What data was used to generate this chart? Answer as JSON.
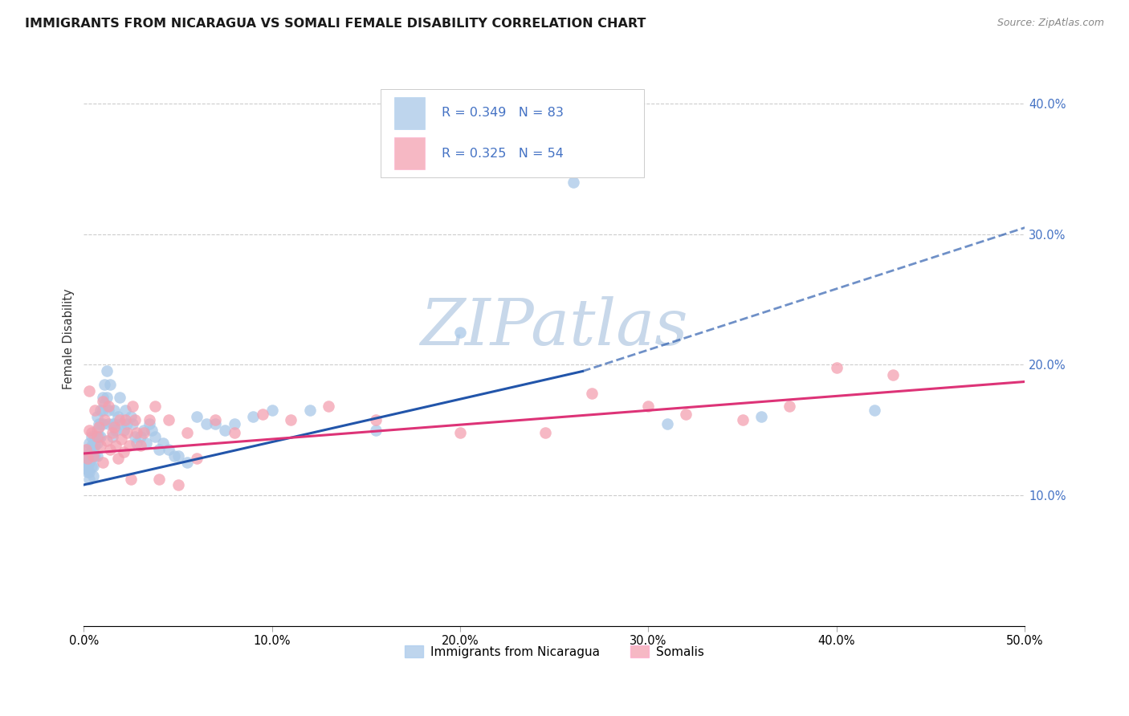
{
  "title": "IMMIGRANTS FROM NICARAGUA VS SOMALI FEMALE DISABILITY CORRELATION CHART",
  "source_text": "Source: ZipAtlas.com",
  "ylabel_label": "Female Disability",
  "xlim": [
    0.0,
    0.5
  ],
  "ylim": [
    0.0,
    0.44
  ],
  "xtick_vals": [
    0.0,
    0.1,
    0.2,
    0.3,
    0.4,
    0.5
  ],
  "xtick_labels": [
    "0.0%",
    "10.0%",
    "20.0%",
    "30.0%",
    "40.0%",
    "50.0%"
  ],
  "ytick_vals": [
    0.1,
    0.2,
    0.3,
    0.4
  ],
  "ytick_labels": [
    "10.0%",
    "20.0%",
    "30.0%",
    "40.0%"
  ],
  "legend_R1": "0.349",
  "legend_N1": "83",
  "legend_R2": "0.325",
  "legend_N2": "54",
  "blue_color": "#a8c8e8",
  "pink_color": "#f4a0b0",
  "blue_line_color": "#2255aa",
  "pink_line_color": "#dd3377",
  "blue_line_start_y": 0.108,
  "blue_line_end_y": 0.195,
  "blue_line_dashed_end_y": 0.305,
  "pink_line_start_y": 0.132,
  "pink_line_end_y": 0.187,
  "watermark": "ZIPatlas",
  "blue_scatter_x": [
    0.001,
    0.001,
    0.001,
    0.002,
    0.002,
    0.002,
    0.002,
    0.003,
    0.003,
    0.003,
    0.003,
    0.003,
    0.004,
    0.004,
    0.004,
    0.004,
    0.005,
    0.005,
    0.005,
    0.005,
    0.006,
    0.006,
    0.006,
    0.007,
    0.007,
    0.007,
    0.007,
    0.008,
    0.008,
    0.009,
    0.009,
    0.009,
    0.01,
    0.01,
    0.01,
    0.011,
    0.011,
    0.012,
    0.012,
    0.013,
    0.013,
    0.014,
    0.015,
    0.015,
    0.016,
    0.016,
    0.017,
    0.018,
    0.019,
    0.02,
    0.021,
    0.022,
    0.023,
    0.025,
    0.026,
    0.027,
    0.028,
    0.03,
    0.032,
    0.033,
    0.035,
    0.036,
    0.038,
    0.04,
    0.042,
    0.045,
    0.048,
    0.05,
    0.055,
    0.06,
    0.065,
    0.07,
    0.075,
    0.08,
    0.09,
    0.1,
    0.12,
    0.155,
    0.2,
    0.26,
    0.31,
    0.36,
    0.42
  ],
  "blue_scatter_y": [
    0.13,
    0.125,
    0.12,
    0.135,
    0.128,
    0.122,
    0.118,
    0.14,
    0.132,
    0.125,
    0.118,
    0.112,
    0.145,
    0.138,
    0.13,
    0.122,
    0.138,
    0.13,
    0.122,
    0.115,
    0.145,
    0.138,
    0.13,
    0.16,
    0.15,
    0.14,
    0.13,
    0.155,
    0.145,
    0.165,
    0.155,
    0.145,
    0.175,
    0.165,
    0.155,
    0.185,
    0.17,
    0.195,
    0.175,
    0.165,
    0.155,
    0.185,
    0.155,
    0.145,
    0.165,
    0.155,
    0.15,
    0.16,
    0.175,
    0.155,
    0.15,
    0.165,
    0.155,
    0.16,
    0.155,
    0.145,
    0.14,
    0.145,
    0.15,
    0.14,
    0.155,
    0.15,
    0.145,
    0.135,
    0.14,
    0.135,
    0.13,
    0.13,
    0.125,
    0.16,
    0.155,
    0.155,
    0.15,
    0.155,
    0.16,
    0.165,
    0.165,
    0.15,
    0.225,
    0.34,
    0.155,
    0.16,
    0.165
  ],
  "pink_scatter_x": [
    0.001,
    0.002,
    0.003,
    0.003,
    0.004,
    0.005,
    0.006,
    0.007,
    0.008,
    0.009,
    0.01,
    0.01,
    0.011,
    0.012,
    0.013,
    0.014,
    0.015,
    0.016,
    0.017,
    0.018,
    0.019,
    0.02,
    0.021,
    0.022,
    0.023,
    0.024,
    0.025,
    0.026,
    0.027,
    0.028,
    0.03,
    0.032,
    0.035,
    0.038,
    0.04,
    0.045,
    0.05,
    0.055,
    0.06,
    0.07,
    0.08,
    0.095,
    0.11,
    0.13,
    0.155,
    0.2,
    0.245,
    0.27,
    0.3,
    0.32,
    0.35,
    0.375,
    0.4,
    0.43
  ],
  "pink_scatter_y": [
    0.135,
    0.128,
    0.15,
    0.18,
    0.148,
    0.13,
    0.165,
    0.145,
    0.152,
    0.138,
    0.125,
    0.172,
    0.158,
    0.142,
    0.168,
    0.135,
    0.148,
    0.152,
    0.138,
    0.128,
    0.158,
    0.143,
    0.133,
    0.158,
    0.148,
    0.138,
    0.112,
    0.168,
    0.158,
    0.148,
    0.138,
    0.148,
    0.158,
    0.168,
    0.112,
    0.158,
    0.108,
    0.148,
    0.128,
    0.158,
    0.148,
    0.162,
    0.158,
    0.168,
    0.158,
    0.148,
    0.148,
    0.178,
    0.168,
    0.162,
    0.158,
    0.168,
    0.198,
    0.192
  ],
  "background_color": "#ffffff",
  "grid_color": "#cccccc",
  "title_fontsize": 11.5,
  "axis_label_fontsize": 10.5,
  "tick_fontsize": 10.5,
  "watermark_color": "#c8d8ea",
  "right_tick_color": "#4472c4"
}
